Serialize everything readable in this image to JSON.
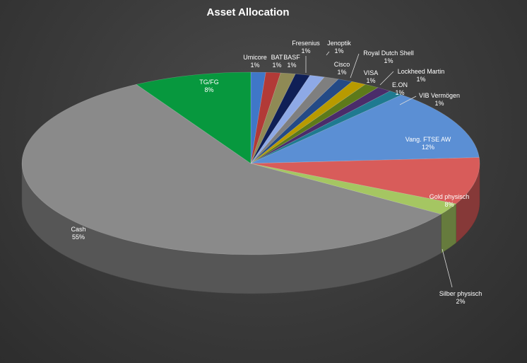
{
  "chart_data": {
    "type": "pie",
    "style": "3d",
    "title": "Asset Allocation",
    "slices": [
      {
        "label": "Umicore",
        "value": 1,
        "display": "1%",
        "color": "#3f77c8"
      },
      {
        "label": "BAT",
        "value": 1,
        "display": "1%",
        "color": "#b23a37"
      },
      {
        "label": "BASF",
        "value": 1,
        "display": "1%",
        "color": "#8f8a55"
      },
      {
        "label": "Fresenius",
        "value": 1,
        "display": "1%",
        "color": "#0f1f56"
      },
      {
        "label": "Jenoptik",
        "value": 1,
        "display": "1%",
        "color": "#8ea9e6"
      },
      {
        "label": "Cisco",
        "value": 1,
        "display": "1%",
        "color": "#7f7f7f"
      },
      {
        "label": "Royal Dutch Shell",
        "value": 1,
        "display": "1%",
        "color": "#244a86"
      },
      {
        "label": "VISA",
        "value": 1,
        "display": "1%",
        "color": "#b89a00"
      },
      {
        "label": "Lockheed Martin",
        "value": 1,
        "display": "1%",
        "color": "#5d7a1a"
      },
      {
        "label": "E.ON",
        "value": 1,
        "display": "1%",
        "color": "#4a2c6a"
      },
      {
        "label": "VIB Vermögen",
        "value": 1,
        "display": "1%",
        "color": "#1f7a90"
      },
      {
        "label": "Vang. FTSE AW",
        "value": 12,
        "display": "12%",
        "color": "#5b8fd4"
      },
      {
        "label": "Gold physisch",
        "value": 8,
        "display": "8%",
        "color": "#d85c5a"
      },
      {
        "label": "Silber physisch",
        "value": 2,
        "display": "2%",
        "color": "#a5c662"
      },
      {
        "label": "Cash",
        "value": 55,
        "display": "55%",
        "color": "#8a8a8a"
      },
      {
        "label": "TG/FG",
        "value": 8,
        "display": "8%",
        "color": "#07983e"
      }
    ]
  }
}
